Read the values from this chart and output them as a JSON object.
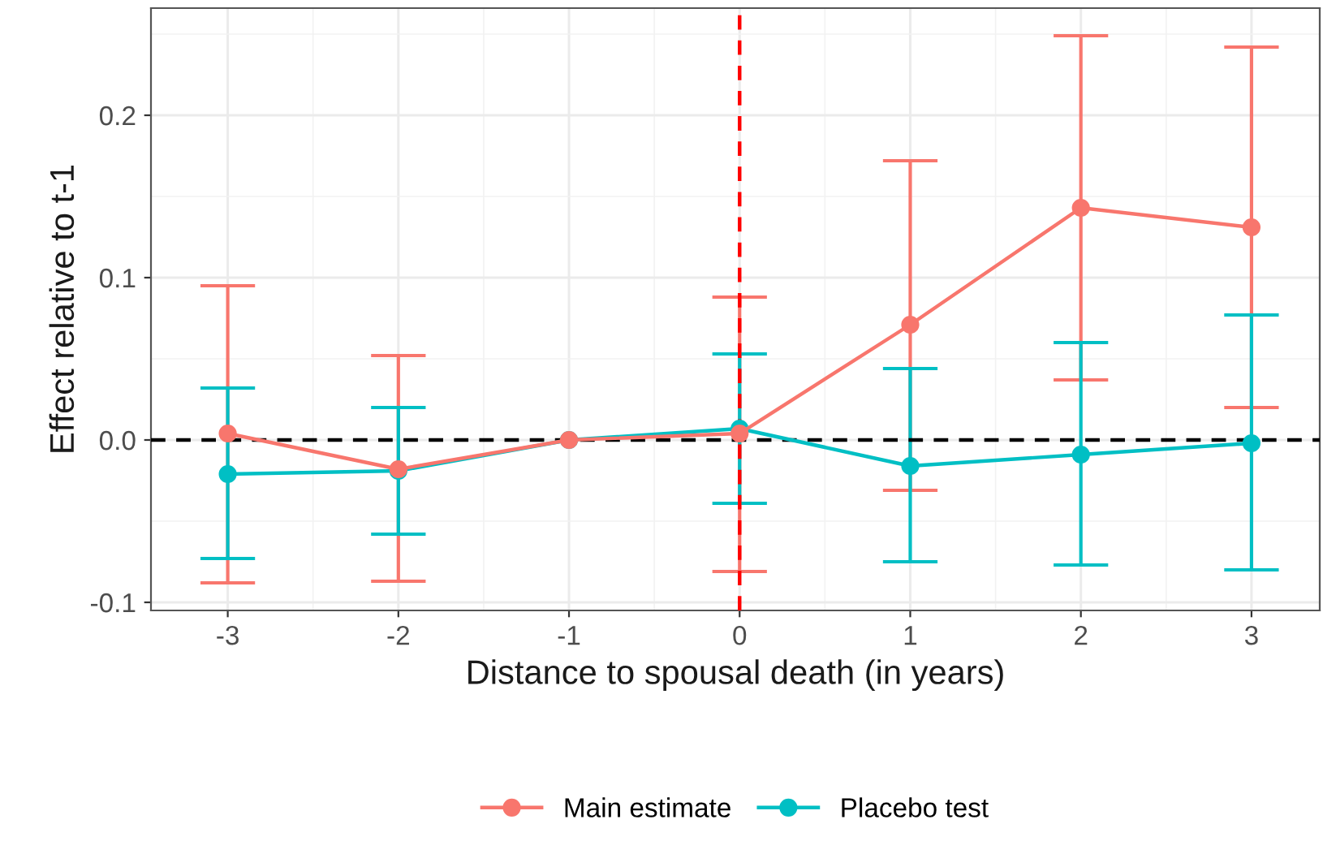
{
  "chart_data": {
    "type": "line",
    "xlabel": "Distance to spousal death (in years)",
    "ylabel": "Effect relative to t-1",
    "x": [
      -3,
      -2,
      -1,
      0,
      1,
      2,
      3
    ],
    "series": [
      {
        "name": "Main estimate",
        "color": "#f8766d",
        "values": [
          0.004,
          -0.018,
          0,
          0.004,
          0.071,
          0.143,
          0.131
        ],
        "errors": [
          [
            -0.088,
            0.095
          ],
          [
            -0.087,
            0.052
          ],
          null,
          [
            -0.081,
            0.088
          ],
          [
            -0.031,
            0.172
          ],
          [
            0.037,
            0.249
          ],
          [
            0.02,
            0.242
          ]
        ]
      },
      {
        "name": "Placebo test",
        "color": "#00bfc4",
        "values": [
          -0.021,
          -0.019,
          0,
          0.007,
          -0.016,
          -0.009,
          -0.002
        ],
        "errors": [
          [
            -0.073,
            0.032
          ],
          [
            -0.058,
            0.02
          ],
          null,
          [
            -0.039,
            0.053
          ],
          [
            -0.075,
            0.044
          ],
          [
            -0.077,
            0.06
          ],
          [
            -0.08,
            0.077
          ]
        ]
      }
    ],
    "xlim": [
      -3.45,
      3.4
    ],
    "xticks": [
      {
        "value": -3,
        "label": "-3"
      },
      {
        "value": -2,
        "label": "-2"
      },
      {
        "value": -1,
        "label": "-1"
      },
      0,
      1,
      2,
      3
    ],
    "ylim": [
      -0.105,
      0.266
    ],
    "yticks": [
      {
        "value": -0.1,
        "label": "-0.1"
      },
      {
        "value": 0,
        "label": "0.0"
      },
      0.1,
      0.2
    ],
    "ref_lines": [
      {
        "axis": "y",
        "value": 0,
        "color": "#000000",
        "line_style": "dashed"
      },
      {
        "axis": "x",
        "value": 0,
        "color": "#ff0000",
        "line_style": "dashed"
      }
    ],
    "grid": true,
    "legend": "bottom",
    "marker": "circle",
    "line_style": "solid"
  }
}
